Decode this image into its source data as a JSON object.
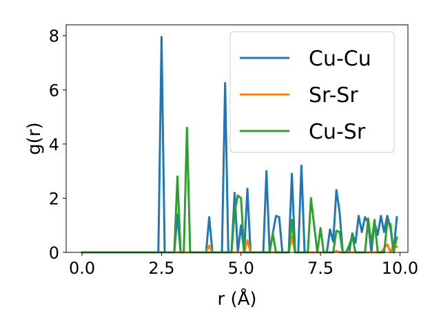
{
  "chart_data": {
    "type": "line",
    "xlabel": "r (Å)",
    "ylabel": "g(r)",
    "xlim": [
      -0.5,
      10.25
    ],
    "ylim": [
      0,
      8.4
    ],
    "x_ticks": [
      0.0,
      2.5,
      5.0,
      7.5,
      10.0
    ],
    "x_tick_labels": [
      "0.0",
      "2.5",
      "5.0",
      "7.5",
      "10.0"
    ],
    "y_ticks": [
      0,
      2,
      4,
      6,
      8
    ],
    "y_tick_labels": [
      "0",
      "2",
      "4",
      "6",
      "8"
    ],
    "grid": false,
    "legend_position": "upper-right",
    "series": [
      {
        "name": "Cu-Cu",
        "color": "#1f77b4",
        "points": [
          [
            0.0,
            0
          ],
          [
            2.4,
            0
          ],
          [
            2.5,
            7.95
          ],
          [
            2.6,
            0
          ],
          [
            2.9,
            0
          ],
          [
            3.0,
            1.4
          ],
          [
            3.1,
            0
          ],
          [
            3.9,
            0
          ],
          [
            4.0,
            1.3
          ],
          [
            4.1,
            0
          ],
          [
            4.4,
            0
          ],
          [
            4.5,
            6.25
          ],
          [
            4.6,
            0
          ],
          [
            4.7,
            0
          ],
          [
            4.8,
            2.2
          ],
          [
            4.9,
            0
          ],
          [
            5.0,
            1.0
          ],
          [
            5.1,
            0
          ],
          [
            5.2,
            2.35
          ],
          [
            5.3,
            0
          ],
          [
            5.7,
            0
          ],
          [
            5.8,
            3.0
          ],
          [
            5.9,
            0
          ],
          [
            6.0,
            0.7
          ],
          [
            6.1,
            1.35
          ],
          [
            6.2,
            1.3
          ],
          [
            6.3,
            0
          ],
          [
            6.5,
            0
          ],
          [
            6.6,
            2.9
          ],
          [
            6.7,
            0
          ],
          [
            6.8,
            0
          ],
          [
            6.9,
            3.2
          ],
          [
            7.0,
            0
          ],
          [
            7.5,
            0
          ],
          [
            7.7,
            0
          ],
          [
            7.8,
            0.85
          ],
          [
            7.9,
            0.4
          ],
          [
            8.0,
            2.3
          ],
          [
            8.1,
            1.5
          ],
          [
            8.2,
            0
          ],
          [
            8.4,
            0
          ],
          [
            8.5,
            0.7
          ],
          [
            8.6,
            0.35
          ],
          [
            8.7,
            1.35
          ],
          [
            8.8,
            0.75
          ],
          [
            8.9,
            1.3
          ],
          [
            9.0,
            1.1
          ],
          [
            9.1,
            0
          ],
          [
            9.2,
            1.1
          ],
          [
            9.3,
            0.65
          ],
          [
            9.4,
            1.35
          ],
          [
            9.5,
            0.75
          ],
          [
            9.6,
            1.35
          ],
          [
            9.7,
            0.9
          ],
          [
            9.8,
            0
          ],
          [
            9.9,
            1.3
          ]
        ]
      },
      {
        "name": "Sr-Sr",
        "color": "#ff7f0e",
        "points": [
          [
            0.0,
            0
          ],
          [
            3.9,
            0
          ],
          [
            4.0,
            0.25
          ],
          [
            4.1,
            0
          ],
          [
            5.1,
            0
          ],
          [
            5.2,
            0.45
          ],
          [
            5.3,
            0
          ],
          [
            6.5,
            0
          ],
          [
            6.6,
            0.6
          ],
          [
            6.7,
            0
          ],
          [
            7.9,
            0
          ],
          [
            8.0,
            0.05
          ],
          [
            8.1,
            0
          ],
          [
            9.4,
            0
          ],
          [
            9.6,
            0.3
          ],
          [
            9.7,
            0
          ],
          [
            9.8,
            0.3
          ],
          [
            9.9,
            0.2
          ]
        ]
      },
      {
        "name": "Cu-Sr",
        "color": "#2ca02c",
        "points": [
          [
            0.0,
            0
          ],
          [
            2.9,
            0
          ],
          [
            3.0,
            2.8
          ],
          [
            3.1,
            0
          ],
          [
            3.2,
            0
          ],
          [
            3.3,
            4.6
          ],
          [
            3.4,
            0
          ],
          [
            4.7,
            0
          ],
          [
            4.8,
            1.5
          ],
          [
            4.9,
            2.1
          ],
          [
            5.0,
            2.0
          ],
          [
            5.1,
            0
          ],
          [
            5.9,
            0
          ],
          [
            6.0,
            0.7
          ],
          [
            6.1,
            0
          ],
          [
            6.5,
            0
          ],
          [
            6.6,
            1.2
          ],
          [
            6.7,
            0
          ],
          [
            7.1,
            0
          ],
          [
            7.2,
            2.0
          ],
          [
            7.3,
            1.0
          ],
          [
            7.4,
            0
          ],
          [
            7.5,
            0.9
          ],
          [
            7.6,
            0
          ],
          [
            7.9,
            0
          ],
          [
            8.0,
            0.8
          ],
          [
            8.1,
            0.75
          ],
          [
            8.2,
            0
          ],
          [
            8.3,
            0
          ],
          [
            8.4,
            0.25
          ],
          [
            8.5,
            0.6
          ],
          [
            8.6,
            0
          ],
          [
            8.9,
            0
          ],
          [
            9.0,
            1.25
          ],
          [
            9.1,
            0.3
          ],
          [
            9.2,
            1.2
          ],
          [
            9.3,
            0
          ],
          [
            9.5,
            0
          ],
          [
            9.6,
            1.1
          ],
          [
            9.7,
            1.05
          ],
          [
            9.8,
            0
          ],
          [
            9.9,
            0.55
          ]
        ]
      }
    ]
  }
}
